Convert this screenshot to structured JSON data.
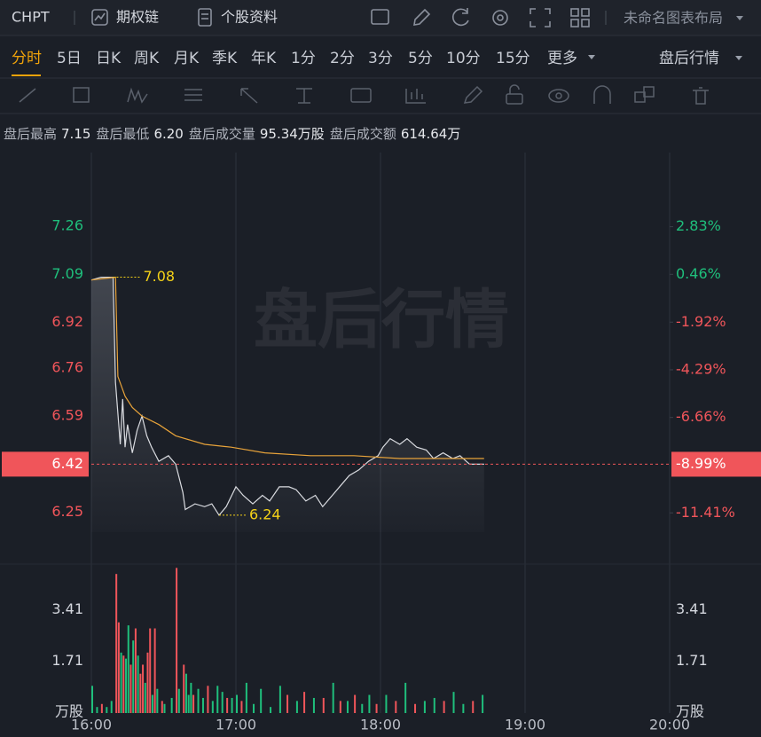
{
  "toolbar": {
    "symbol": "CHPT",
    "buttons": [
      "期权链",
      "个股资料"
    ],
    "layout": "未命名图表布局"
  },
  "tabs": [
    "分时",
    "5日",
    "日K",
    "周K",
    "月K",
    "季K",
    "年K",
    "1分",
    "2分",
    "3分",
    "5分",
    "10分",
    "15分",
    "更多"
  ],
  "session": "盘后行情",
  "stats": [
    {
      "label": "盘后最高",
      "value": "7.15"
    },
    {
      "label": "盘后最低",
      "value": "6.20"
    },
    {
      "label": "盘后成交量",
      "value": "95.34万股"
    },
    {
      "label": "盘后成交额",
      "value": "614.64万"
    }
  ],
  "watermark": "盘后行情",
  "chart_data": [
    {
      "type": "line",
      "xlim": [
        "16:00",
        "20:00"
      ],
      "ylim": [
        6.08,
        7.52
      ],
      "yticks": [
        7.26,
        7.09,
        6.92,
        6.76,
        6.59,
        6.25
      ],
      "y2lim": [
        -13.78,
        6.52
      ],
      "y2ticks": [
        {
          "value": 2.83,
          "label": "2.83%"
        },
        {
          "value": 0.46,
          "label": "0.46%"
        },
        {
          "value": -1.92,
          "label": "-1.92%"
        },
        {
          "value": -4.29,
          "label": "-4.29%"
        },
        {
          "value": -6.66,
          "label": "-6.66%"
        },
        {
          "value": -11.41,
          "label": "-11.41%"
        }
      ],
      "up_color": "#1fbf7c",
      "down_color": "#f0555a",
      "current": {
        "value": 6.42,
        "label": "6.42",
        "percent": {
          "value": -8.99,
          "label": "-8.99%"
        }
      },
      "series": [
        {
          "color": "#d9dbe0",
          "x": [
            "16:00",
            "16:04",
            "16:09",
            "16:10",
            "16:12",
            "16:13",
            "16:14",
            "16:15",
            "16:17",
            "16:19",
            "16:21",
            "16:23",
            "16:25",
            "16:28",
            "16:32",
            "16:35",
            "16:38",
            "16:39",
            "16:43",
            "16:47",
            "16:50",
            "16:53",
            "16:56",
            "17:00",
            "17:03",
            "17:07",
            "17:11",
            "17:14",
            "17:18",
            "17:22",
            "17:25",
            "17:29",
            "17:33",
            "17:36",
            "17:40",
            "17:44",
            "17:47",
            "17:51",
            "17:55",
            "17:59",
            "18:01",
            "18:04",
            "18:08",
            "18:11",
            "18:15",
            "18:19",
            "18:22",
            "18:26",
            "18:30",
            "18:33",
            "18:37",
            "18:41",
            "18:43"
          ],
          "values": [
            7.07,
            7.08,
            7.08,
            6.71,
            6.49,
            6.65,
            6.48,
            6.56,
            6.46,
            6.54,
            6.59,
            6.52,
            6.48,
            6.43,
            6.45,
            6.42,
            6.32,
            6.26,
            6.28,
            6.27,
            6.28,
            6.24,
            6.27,
            6.34,
            6.31,
            6.28,
            6.31,
            6.29,
            6.34,
            6.34,
            6.33,
            6.29,
            6.31,
            6.27,
            6.31,
            6.35,
            6.38,
            6.4,
            6.43,
            6.45,
            6.48,
            6.51,
            6.49,
            6.51,
            6.48,
            6.47,
            6.44,
            6.46,
            6.44,
            6.45,
            6.42,
            6.42,
            6.42
          ]
        },
        {
          "color": "#e8a33a",
          "x": [
            "16:00",
            "16:10",
            "16:11",
            "16:14",
            "16:17",
            "16:21",
            "16:28",
            "16:35",
            "16:47",
            "16:58",
            "17:12",
            "17:31",
            "17:49",
            "18:08",
            "18:43"
          ],
          "values": [
            7.07,
            7.08,
            6.73,
            6.66,
            6.62,
            6.59,
            6.56,
            6.52,
            6.49,
            6.48,
            6.46,
            6.45,
            6.45,
            6.44,
            6.44
          ]
        }
      ],
      "annotations": [
        {
          "x": "16:09",
          "value": 7.08
        },
        {
          "x": "16:53",
          "value": 6.24
        }
      ],
      "annotation_color": "#f5d218"
    },
    {
      "type": "bar",
      "xlim": [
        "16:00",
        "20:00"
      ],
      "xticks": [
        "16:00",
        "17:00",
        "18:00",
        "19:00",
        "20:00"
      ],
      "ylim": [
        0,
        4.81
      ],
      "yticks": [
        3.41,
        1.71
      ],
      "unit": "万股",
      "up_color": "#f0555a",
      "down_color": "#1fbf7c",
      "x": [
        "16:00",
        "16:02",
        "16:04",
        "16:06",
        "16:08",
        "16:10",
        "16:11",
        "16:12",
        "16:13",
        "16:14",
        "16:15",
        "16:16",
        "16:17",
        "16:18",
        "16:19",
        "16:20",
        "16:21",
        "16:22",
        "16:23",
        "16:24",
        "16:25",
        "16:26",
        "16:27",
        "16:29",
        "16:30",
        "16:33",
        "16:35",
        "16:36",
        "16:38",
        "16:39",
        "16:40",
        "16:41",
        "16:42",
        "16:44",
        "16:46",
        "16:48",
        "16:50",
        "16:52",
        "16:54",
        "16:56",
        "16:58",
        "17:00",
        "17:02",
        "17:04",
        "17:07",
        "17:10",
        "17:14",
        "17:18",
        "17:21",
        "17:25",
        "17:28",
        "17:32",
        "17:36",
        "17:40",
        "17:43",
        "17:46",
        "17:49",
        "17:52",
        "17:55",
        "17:58",
        "18:02",
        "18:06",
        "18:10",
        "18:14",
        "18:18",
        "18:22",
        "18:26",
        "18:30",
        "18:34",
        "18:38",
        "18:42"
      ],
      "values": [
        0.9,
        0.2,
        0.3,
        0.2,
        0.4,
        4.6,
        3.0,
        2.0,
        1.9,
        1.8,
        2.9,
        1.6,
        2.4,
        2.8,
        1.9,
        1.3,
        1.6,
        1.0,
        2.0,
        2.8,
        0.6,
        2.8,
        0.8,
        0.4,
        0.3,
        0.5,
        4.8,
        0.8,
        1.6,
        1.3,
        0.6,
        1.0,
        0.6,
        0.8,
        0.5,
        0.9,
        0.4,
        0.9,
        0.7,
        0.5,
        0.5,
        0.6,
        0.4,
        1.0,
        0.3,
        0.8,
        0.2,
        0.9,
        0.6,
        0.4,
        0.7,
        0.5,
        0.5,
        1.0,
        0.4,
        0.4,
        0.6,
        0.3,
        0.6,
        0.3,
        0.6,
        0.4,
        1.0,
        0.3,
        0.4,
        0.5,
        0.4,
        0.7,
        0.3,
        0.4,
        0.6
      ],
      "up": [
        false,
        false,
        true,
        false,
        false,
        true,
        true,
        false,
        true,
        false,
        false,
        true,
        false,
        true,
        false,
        true,
        true,
        false,
        true,
        true,
        false,
        true,
        false,
        true,
        false,
        false,
        true,
        false,
        true,
        false,
        false,
        false,
        true,
        false,
        false,
        true,
        false,
        false,
        false,
        true,
        false,
        false,
        true,
        false,
        false,
        false,
        false,
        false,
        true,
        false,
        true,
        false,
        true,
        false,
        true,
        false,
        true,
        false,
        false,
        true,
        false,
        true,
        false,
        true,
        false,
        false,
        true,
        false,
        false,
        true,
        false
      ]
    }
  ]
}
